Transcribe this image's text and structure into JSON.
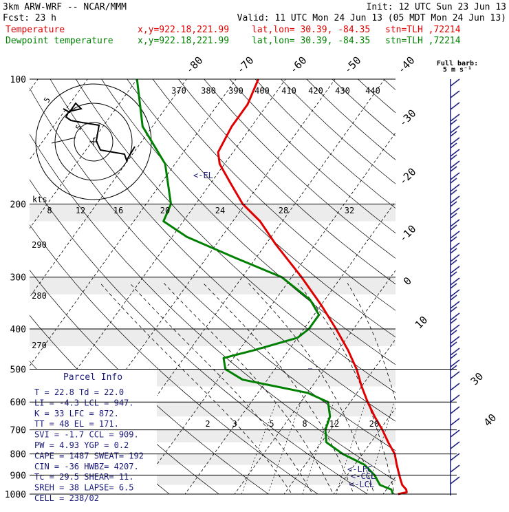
{
  "header": {
    "model": "3km ARW-WRF -- NCAR/MMM",
    "init": "Init: 12 UTC Sun 23 Jun 13",
    "fcst_label": "Fcst:",
    "fcst_value": "23 h",
    "valid": "Valid: 11 UTC Mon 24 Jun 13 (05 MDT Mon 24 Jun 13)",
    "temp_label": "Temperature",
    "dew_label": "Dewpoint temperature",
    "xy": "x,y=922.18,221.99",
    "latlon": "lat,lon= 30.39, -84.35",
    "stn": "stn=TLH ,72214",
    "full_barb": "Full barb:",
    "barb_units": "5 m s⁻¹"
  },
  "colors": {
    "temperature": "#e00000",
    "dewpoint": "#008000",
    "info_text": "#1a1a7a"
  },
  "chart_data": {
    "type": "skew-t",
    "pressure_levels": [
      100,
      200,
      300,
      400,
      500,
      600,
      700,
      800,
      900,
      1000
    ],
    "isotherm_labels": [
      "-80",
      "-70",
      "-60",
      "-50",
      "-40",
      "-30",
      "-20",
      "-10",
      "0",
      "10",
      "30",
      "40"
    ],
    "theta_labels": [
      "370",
      "380",
      "390",
      "400",
      "410",
      "420",
      "430",
      "440"
    ],
    "theta_low_labels": [
      "290",
      "280",
      "270"
    ],
    "mixing_ratio_labels": [
      "2",
      "3",
      "5",
      "8",
      "12",
      "20"
    ],
    "hodograph_speed_labels": [
      "8",
      "12",
      "16",
      "20",
      "24",
      "28",
      "32"
    ],
    "hodograph_units": "kts",
    "hodograph_ring_labels": [
      "5",
      "5"
    ],
    "el_label": "<-EL",
    "lfc_label": "<-LFC",
    "ccl_label": "<-CCL",
    "lcl_label": "<-LCL",
    "temperature": [
      {
        "p": 1000,
        "t": 23.0
      },
      {
        "p": 990,
        "t": 24.5
      },
      {
        "p": 975,
        "t": 24.0
      },
      {
        "p": 950,
        "t": 22.5
      },
      {
        "p": 925,
        "t": 21.5
      },
      {
        "p": 900,
        "t": 20.5
      },
      {
        "p": 850,
        "t": 18.5
      },
      {
        "p": 800,
        "t": 16.5
      },
      {
        "p": 750,
        "t": 13.5
      },
      {
        "p": 700,
        "t": 10.5
      },
      {
        "p": 650,
        "t": 7.0
      },
      {
        "p": 600,
        "t": 3.5
      },
      {
        "p": 550,
        "t": 0.0
      },
      {
        "p": 500,
        "t": -3.5
      },
      {
        "p": 450,
        "t": -8.0
      },
      {
        "p": 400,
        "t": -13.5
      },
      {
        "p": 350,
        "t": -20.0
      },
      {
        "p": 300,
        "t": -28.0
      },
      {
        "p": 250,
        "t": -38.0
      },
      {
        "p": 220,
        "t": -44.5
      },
      {
        "p": 200,
        "t": -50.5
      },
      {
        "p": 180,
        "t": -55.5
      },
      {
        "p": 160,
        "t": -61.0
      },
      {
        "p": 150,
        "t": -63.0
      },
      {
        "p": 130,
        "t": -64.0
      },
      {
        "p": 115,
        "t": -64.0
      },
      {
        "p": 100,
        "t": -65.5
      }
    ],
    "dewpoint": [
      {
        "p": 1000,
        "t": 22.0
      },
      {
        "p": 975,
        "t": 21.0
      },
      {
        "p": 950,
        "t": 18.0
      },
      {
        "p": 900,
        "t": 15.5
      },
      {
        "p": 850,
        "t": 12.0
      },
      {
        "p": 800,
        "t": 6.0
      },
      {
        "p": 750,
        "t": 1.0
      },
      {
        "p": 700,
        "t": -1.0
      },
      {
        "p": 650,
        "t": -2.0
      },
      {
        "p": 600,
        "t": -4.5
      },
      {
        "p": 570,
        "t": -10.0
      },
      {
        "p": 530,
        "t": -25.0
      },
      {
        "p": 500,
        "t": -30.0
      },
      {
        "p": 470,
        "t": -32.0
      },
      {
        "p": 450,
        "t": -27.0
      },
      {
        "p": 420,
        "t": -20.0
      },
      {
        "p": 400,
        "t": -19.0
      },
      {
        "p": 370,
        "t": -19.0
      },
      {
        "p": 340,
        "t": -23.0
      },
      {
        "p": 300,
        "t": -32.0
      },
      {
        "p": 270,
        "t": -44.0
      },
      {
        "p": 240,
        "t": -57.0
      },
      {
        "p": 220,
        "t": -64.0
      },
      {
        "p": 200,
        "t": -65.0
      },
      {
        "p": 160,
        "t": -72.0
      },
      {
        "p": 130,
        "t": -82.0
      },
      {
        "p": 100,
        "t": -90.0
      }
    ]
  },
  "parcel_info": {
    "title": "Parcel Info",
    "rows": [
      "T  =   22.8  Td =  22.0",
      "LI =   -4.3  LCL =  947.",
      "K  =     33  LFC =  872.",
      "TT =     48  EL  =  171.",
      "SVI =  -1.7  CCL =  909.",
      "PW =   4.93  YGP =   0.2",
      "CAPE =  1487  SWEAT=  192",
      "CIN =    -36  HWBZ= 4207.",
      "Tc =   29.5  SHEAR=  11.",
      "SREH =    38  LAPSE=  6.5",
      "CELL = 238/02"
    ]
  }
}
